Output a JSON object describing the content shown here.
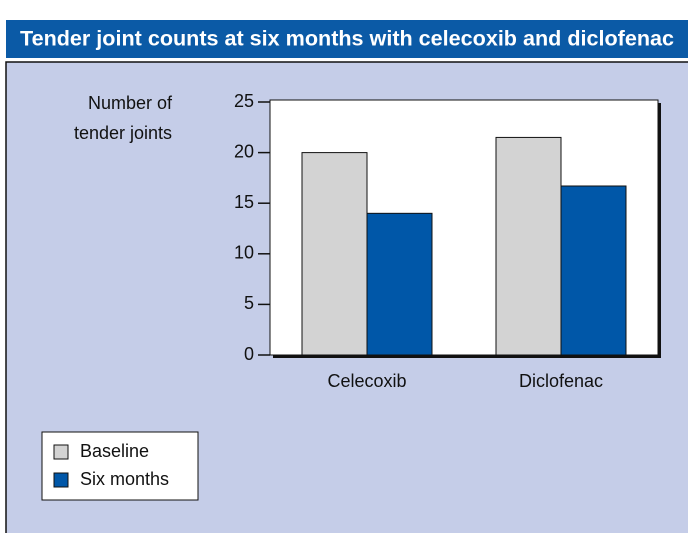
{
  "chart_data": {
    "type": "bar",
    "title": "Tender joint counts at six months with celecoxib and diclofenac",
    "ylabel": [
      "Number of",
      "tender joints"
    ],
    "categories": [
      "Celecoxib",
      "Diclofenac"
    ],
    "series": [
      {
        "name": "Baseline",
        "color": "#d3d3d3",
        "values": [
          20,
          21.5
        ]
      },
      {
        "name": "Six months",
        "color": "#0057a8",
        "values": [
          14,
          16.7
        ]
      }
    ],
    "ylim": [
      0,
      25
    ],
    "yticks": [
      0,
      5,
      10,
      15,
      20,
      25
    ],
    "grid": false,
    "legend": "lower left"
  }
}
